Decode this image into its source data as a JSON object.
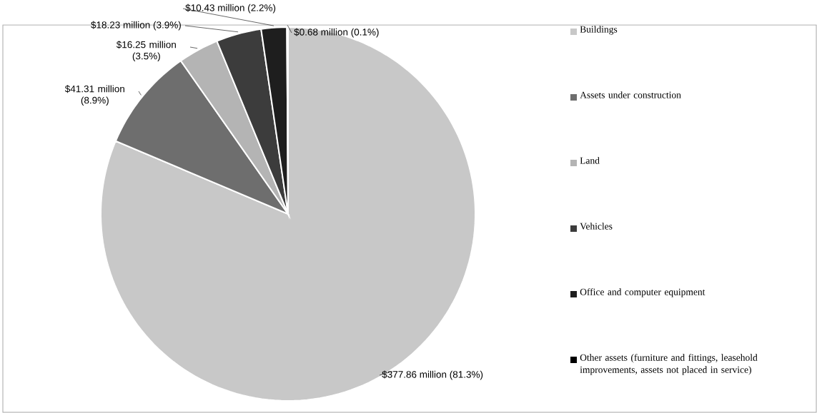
{
  "chart_data": {
    "type": "pie",
    "categories": [
      "Buildings",
      "Assets under construction",
      "Land",
      "Vehicles",
      "Office and computer equipment",
      "Other assets (furniture and fittings, leasehold improvements, assets not placed in service)"
    ],
    "values": [
      81.3,
      8.9,
      3.5,
      3.9,
      2.2,
      0.1
    ],
    "colors": [
      "#c8c8c8",
      "#6e6e6e",
      "#b4b4b4",
      "#3c3c3c",
      "#1e1e1e",
      "#000000"
    ],
    "value_labels": [
      "$377.86 million (81.3%)",
      "$41.31 million (8.9%)",
      "$16.25 million (3.5%)",
      "$18.23 million (3.9%)",
      "$10.43 million (2.2%)",
      "$0.68 million (0.1%)"
    ],
    "legend": "right"
  }
}
